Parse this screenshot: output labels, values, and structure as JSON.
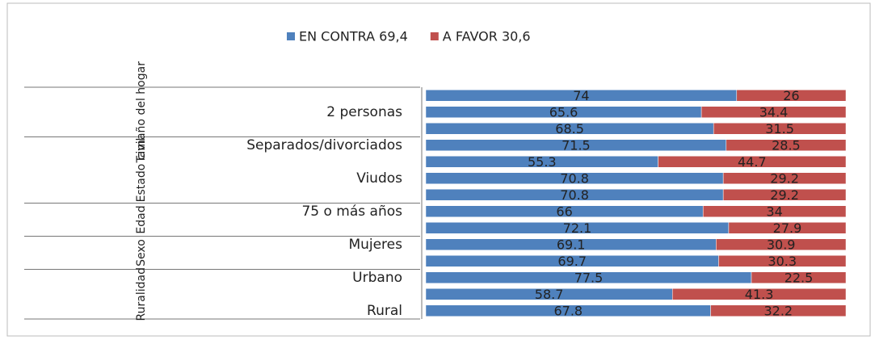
{
  "chart_data": {
    "type": "stacked-bar-horizontal",
    "categories": [
      null,
      "2 personas",
      null,
      "Separados/divorciados",
      null,
      "Viudos",
      null,
      "75 o más años",
      null,
      "Mujeres",
      null,
      "Urbano",
      null,
      "Rural"
    ],
    "groups": [
      {
        "label": "Tamaño del hogar",
        "size": 3
      },
      {
        "label": "Estado civil",
        "size": 4
      },
      {
        "label": "Edad",
        "size": 2
      },
      {
        "label": "Sexo",
        "size": 2
      },
      {
        "label": "Ruralidad",
        "size": 3
      }
    ],
    "series": [
      {
        "name": "EN CONTRA 69,4",
        "color": "#4f81bd",
        "values": [
          74,
          65.6,
          68.5,
          71.5,
          55.3,
          70.8,
          70.8,
          66,
          72.1,
          69.1,
          69.7,
          77.5,
          58.7,
          67.8
        ]
      },
      {
        "name": "A FAVOR 30,6",
        "color": "#c0504d",
        "values": [
          26,
          34.4,
          31.5,
          28.5,
          44.7,
          29.2,
          29.2,
          34,
          27.9,
          30.9,
          30.3,
          22.5,
          41.3,
          32.2
        ]
      }
    ],
    "xlim": [
      0,
      100
    ],
    "legend": "top"
  }
}
